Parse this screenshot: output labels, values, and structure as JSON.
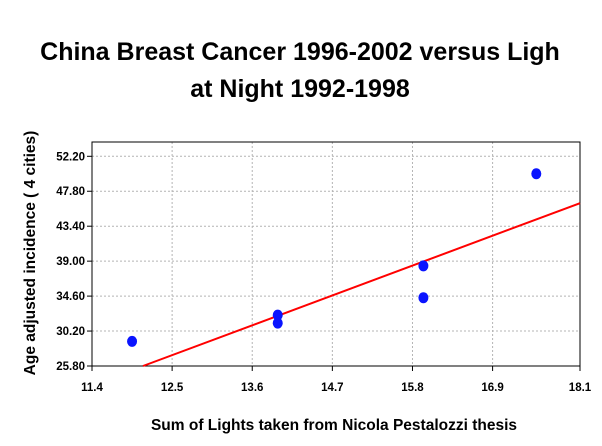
{
  "chart_data": {
    "type": "scatter",
    "title_lines": [
      "China Breast Cancer 1996-2002 versus Ligh",
      "at Night 1992-1998"
    ],
    "xlabel": "Sum of Lights taken from Nicola Pestalozzi thesis",
    "ylabel": "Age adjusted incidence ( 4 cities)",
    "xlim": [
      11.4,
      18.1
    ],
    "ylim": [
      25.8,
      54.0
    ],
    "x_ticks": [
      "11.4",
      "12.5",
      "13.6",
      "14.7",
      "15.8",
      "16.9",
      "18.1"
    ],
    "y_ticks": [
      "25.80",
      "30.20",
      "34.60",
      "39.00",
      "43.40",
      "47.80",
      "52.20"
    ],
    "grid": true,
    "colors": {
      "points": "#0a14ff",
      "trendline": "#ff0000"
    },
    "points": [
      {
        "x": 11.95,
        "y": 28.9
      },
      {
        "x": 13.95,
        "y": 32.2
      },
      {
        "x": 13.95,
        "y": 31.2
      },
      {
        "x": 15.95,
        "y": 38.4
      },
      {
        "x": 15.95,
        "y": 34.4
      },
      {
        "x": 17.5,
        "y": 50.0
      }
    ],
    "trendline": {
      "x": [
        12.1,
        18.1
      ],
      "y": [
        25.8,
        46.3
      ]
    }
  }
}
